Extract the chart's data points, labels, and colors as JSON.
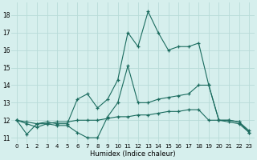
{
  "xlabel": "Humidex (Indice chaleur)",
  "x_ticks": [
    0,
    1,
    2,
    3,
    4,
    5,
    6,
    7,
    8,
    9,
    10,
    11,
    12,
    13,
    14,
    15,
    16,
    17,
    18,
    19,
    20,
    21,
    22,
    23
  ],
  "ylim": [
    10.7,
    18.7
  ],
  "y_ticks": [
    11,
    12,
    13,
    14,
    15,
    16,
    17,
    18
  ],
  "xlim": [
    -0.5,
    23.5
  ],
  "bg_color": "#d6efed",
  "grid_color": "#b8dbd8",
  "line_color": "#1a6b5e",
  "series1": [
    12.0,
    11.2,
    11.8,
    11.9,
    11.8,
    11.8,
    13.2,
    13.5,
    12.7,
    13.2,
    14.3,
    17.0,
    16.2,
    18.2,
    17.0,
    16.0,
    16.2,
    16.2,
    16.4,
    14.0,
    12.0,
    12.0,
    11.9,
    11.4
  ],
  "series2": [
    12.0,
    11.8,
    11.6,
    11.8,
    11.7,
    11.7,
    11.3,
    11.0,
    11.0,
    12.2,
    13.0,
    15.1,
    13.0,
    13.0,
    13.2,
    13.3,
    13.4,
    13.5,
    14.0,
    14.0,
    12.0,
    11.9,
    11.8,
    11.3
  ],
  "series3": [
    12.0,
    11.9,
    11.8,
    11.8,
    11.9,
    11.9,
    12.0,
    12.0,
    12.0,
    12.1,
    12.2,
    12.2,
    12.3,
    12.3,
    12.4,
    12.5,
    12.5,
    12.6,
    12.6,
    12.0,
    12.0,
    12.0,
    11.9,
    11.3
  ]
}
